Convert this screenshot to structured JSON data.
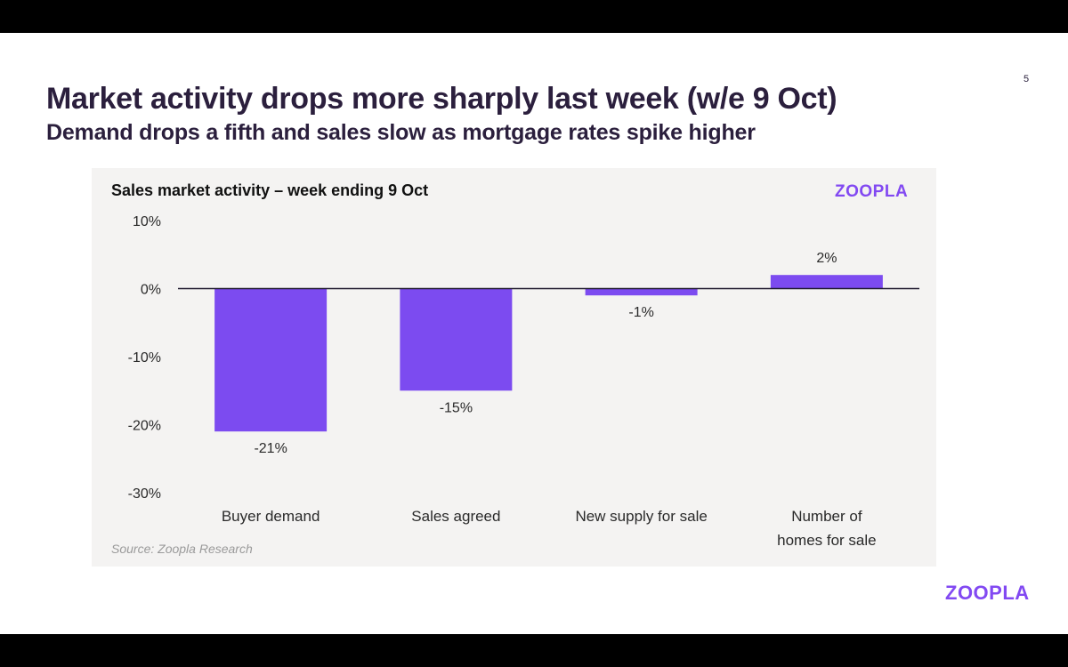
{
  "slide": {
    "page_number": "5",
    "title": "Market activity drops more sharply last week (w/e 9 Oct)",
    "subtitle": "Demand drops a fifth and sales slow as mortgage rates spike higher",
    "source": "Source:  Zoopla Research",
    "logo": "ZOOPLA",
    "footer_logo": "ZOOPLA"
  },
  "colors": {
    "bar": "#7c4bf0",
    "brand": "#8249f2",
    "title": "#2b1f3d",
    "panel_bg": "#f4f3f2",
    "axis": "#1f1a2e"
  },
  "chart_data": {
    "type": "bar",
    "title": "Sales market activity – week ending 9 Oct",
    "categories": [
      [
        "Buyer demand"
      ],
      [
        "Sales agreed"
      ],
      [
        "New supply for sale"
      ],
      [
        "Number of",
        "homes for sale"
      ]
    ],
    "values": [
      -21,
      -15,
      -1,
      2
    ],
    "value_labels": [
      "-21%",
      "-15%",
      "-1%",
      "2%"
    ],
    "ylim": [
      -30,
      10
    ],
    "yticks": [
      10,
      0,
      -10,
      -20,
      -30
    ],
    "ytick_labels": [
      "10%",
      "0%",
      "-10%",
      "-20%",
      "-30%"
    ],
    "xlabel": "",
    "ylabel": "",
    "grid": false,
    "legend": "none"
  }
}
